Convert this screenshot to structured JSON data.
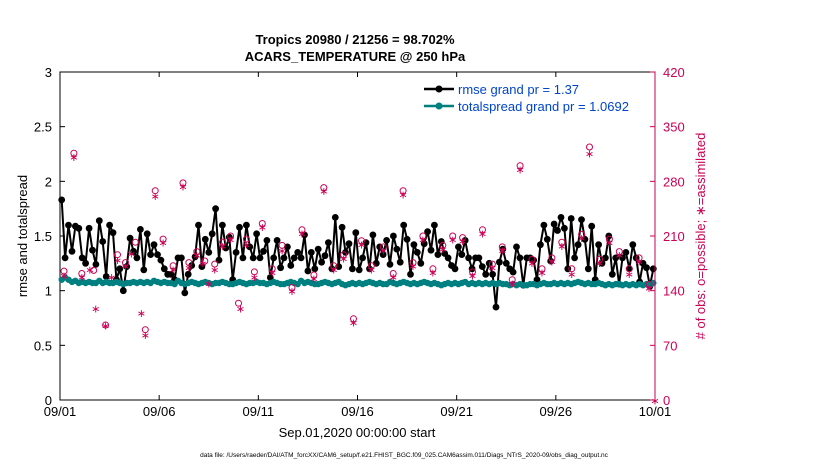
{
  "chart_data": {
    "type": "line",
    "title_line1": "Tropics 20980 / 21256 = 98.702%",
    "title_line2": "ACARS_TEMPERATURE @ 250 hPa",
    "xlabel": "Sep.01,2020 00:00:00 start",
    "ylabel": "rmse and totalspread",
    "y2label": "# of obs: o=possible; ∗=assimilated",
    "footer": "data file: /Users/raeder/DAI/ATM_forcXX/CAM6_setup/f.e21.FHIST_BGC.f09_025.CAM6assim.011/Diags_NTrS_2020-09/obs_diag_output.nc",
    "xlim": [
      0,
      30
    ],
    "ylim": [
      0,
      3
    ],
    "y2lim": [
      0,
      420
    ],
    "x_ticks": [
      0,
      5,
      10,
      15,
      20,
      25,
      30
    ],
    "x_tick_labels": [
      "09/01",
      "09/06",
      "09/11",
      "09/16",
      "09/21",
      "09/26",
      "10/01"
    ],
    "y_ticks": [
      0,
      0.5,
      1,
      1.5,
      2,
      2.5,
      3
    ],
    "y_tick_labels": [
      "0",
      "0.5",
      "1",
      "1.5",
      "2",
      "2.5",
      "3"
    ],
    "y2_ticks": [
      0,
      70,
      140,
      210,
      280,
      350,
      420
    ],
    "y2_tick_labels": [
      "0",
      "70",
      "140",
      "210",
      "280",
      "350",
      "420"
    ],
    "legend_position": "top-right",
    "colors": {
      "rmse": "#000000",
      "totalspread": "#008080",
      "obs": "#cc0055",
      "legend_text": "#0044cc",
      "axis": "#000000"
    },
    "series": [
      {
        "name": "rmse grand pr = 1.37",
        "values": [
          1.83,
          1.3,
          1.6,
          1.36,
          1.59,
          1.57,
          1.3,
          1.25,
          1.57,
          1.37,
          1.24,
          1.64,
          1.45,
          1.13,
          1.6,
          1.53,
          1.1,
          1.2,
          1.0,
          1.22,
          1.48,
          1.36,
          1.3,
          1.56,
          1.19,
          1.52,
          1.33,
          1.42,
          1.33,
          1.28,
          1.2,
          1.15,
          1.15,
          1.1,
          1.3,
          1.3,
          0.98,
          1.15,
          1.23,
          1.31,
          1.6,
          1.22,
          1.47,
          1.35,
          1.52,
          1.75,
          1.28,
          1.6,
          1.39,
          1.49,
          1.1,
          1.35,
          1.58,
          1.3,
          1.6,
          1.4,
          1.3,
          1.52,
          1.3,
          1.36,
          1.46,
          1.12,
          1.3,
          1.46,
          1.21,
          1.3,
          1.4,
          1.23,
          1.3,
          1.35,
          1.3,
          1.51,
          1.18,
          1.35,
          1.2,
          1.38,
          1.26,
          1.32,
          1.44,
          1.2,
          1.67,
          1.22,
          1.58,
          1.35,
          1.43,
          1.2,
          1.53,
          1.19,
          1.3,
          1.44,
          1.2,
          1.51,
          1.25,
          1.4,
          1.33,
          1.46,
          1.24,
          1.5,
          1.38,
          1.26,
          1.6,
          1.47,
          1.15,
          1.42,
          1.35,
          1.25,
          1.43,
          1.54,
          1.37,
          1.6,
          1.33,
          1.45,
          1.34,
          1.3,
          1.23,
          1.2,
          1.4,
          1.33,
          1.46,
          1.3,
          1.2,
          1.3,
          1.3,
          1.22,
          1.15,
          1.25,
          1.15,
          0.85,
          1.26,
          1.38,
          1.25,
          1.2,
          1.17,
          1.4,
          1.3,
          1.05,
          1.3,
          1.3,
          1.28,
          1.1,
          1.42,
          1.6,
          1.47,
          1.27,
          1.61,
          1.55,
          1.67,
          1.57,
          1.2,
          1.66,
          1.3,
          1.42,
          1.65,
          1.47,
          1.2,
          1.59,
          1.1,
          1.42,
          1.25,
          1.3,
          1.5,
          1.15,
          1.3,
          1.06,
          1.3,
          1.35,
          1.2,
          1.42,
          1.3,
          1.08,
          1.25,
          1.21,
          1.04,
          1.2
        ]
      },
      {
        "name": "totalspread grand pr = 1.0692",
        "values": [
          1.1,
          1.12,
          1.1,
          1.08,
          1.09,
          1.07,
          1.08,
          1.07,
          1.08,
          1.07,
          1.07,
          1.09,
          1.07,
          1.08,
          1.07,
          1.07,
          1.08,
          1.07,
          1.06,
          1.07,
          1.07,
          1.08,
          1.07,
          1.08,
          1.07,
          1.08,
          1.07,
          1.09,
          1.08,
          1.07,
          1.08,
          1.07,
          1.07,
          1.06,
          1.09,
          1.07,
          1.06,
          1.07,
          1.08,
          1.07,
          1.06,
          1.07,
          1.08,
          1.07,
          1.06,
          1.07,
          1.07,
          1.08,
          1.07,
          1.06,
          1.06,
          1.07,
          1.08,
          1.07,
          1.06,
          1.07,
          1.07,
          1.08,
          1.07,
          1.07,
          1.06,
          1.07,
          1.08,
          1.07,
          1.06,
          1.06,
          1.07,
          1.08,
          1.07,
          1.06,
          1.09,
          1.07,
          1.08,
          1.07,
          1.06,
          1.06,
          1.07,
          1.08,
          1.07,
          1.06,
          1.07,
          1.08,
          1.06,
          1.05,
          1.06,
          1.07,
          1.06,
          1.07,
          1.06,
          1.07,
          1.08,
          1.07,
          1.06,
          1.07,
          1.06,
          1.06,
          1.08,
          1.07,
          1.06,
          1.07,
          1.08,
          1.07,
          1.06,
          1.07,
          1.06,
          1.07,
          1.08,
          1.07,
          1.06,
          1.07,
          1.06,
          1.05,
          1.06,
          1.07,
          1.06,
          1.07,
          1.06,
          1.07,
          1.08,
          1.06,
          1.07,
          1.06,
          1.07,
          1.06,
          1.07,
          1.06,
          1.07,
          1.06,
          1.07,
          1.06,
          1.06,
          1.05,
          1.06,
          1.05,
          1.06,
          1.05,
          1.05,
          1.06,
          1.06,
          1.05,
          1.06,
          1.07,
          1.06,
          1.06,
          1.07,
          1.06,
          1.07,
          1.06,
          1.07,
          1.06,
          1.07,
          1.08,
          1.07,
          1.06,
          1.07,
          1.06,
          1.06,
          1.07,
          1.06,
          1.05,
          1.06,
          1.05,
          1.06,
          1.06,
          1.05,
          1.06,
          1.05,
          1.06,
          1.05,
          1.06,
          1.05,
          1.06,
          1.05,
          1.07
        ]
      }
    ],
    "obs_possible": [
      [
        0.2,
        165
      ],
      [
        0.7,
        316
      ],
      [
        1.1,
        162
      ],
      [
        1.7,
        166
      ],
      [
        2.3,
        96
      ],
      [
        2.9,
        186
      ],
      [
        3.3,
        176
      ],
      [
        3.8,
        202
      ],
      [
        4.3,
        90
      ],
      [
        4.8,
        268
      ],
      [
        5.2,
        206
      ],
      [
        5.7,
        172
      ],
      [
        6.2,
        278
      ],
      [
        6.5,
        176
      ],
      [
        6.9,
        190
      ],
      [
        7.3,
        178
      ],
      [
        7.8,
        174
      ],
      [
        8.2,
        202
      ],
      [
        8.6,
        210
      ],
      [
        9.0,
        124
      ],
      [
        9.4,
        206
      ],
      [
        9.8,
        164
      ],
      [
        10.2,
        226
      ],
      [
        10.7,
        168
      ],
      [
        11.2,
        198
      ],
      [
        11.7,
        144
      ],
      [
        12.2,
        218
      ],
      [
        12.8,
        160
      ],
      [
        13.3,
        272
      ],
      [
        13.8,
        172
      ],
      [
        14.3,
        186
      ],
      [
        14.8,
        104
      ],
      [
        15.2,
        204
      ],
      [
        15.7,
        172
      ],
      [
        16.3,
        196
      ],
      [
        16.8,
        162
      ],
      [
        17.3,
        268
      ],
      [
        17.8,
        176
      ],
      [
        18.3,
        210
      ],
      [
        18.8,
        168
      ],
      [
        19.3,
        198
      ],
      [
        19.8,
        210
      ],
      [
        20.3,
        208
      ],
      [
        20.8,
        164
      ],
      [
        21.3,
        218
      ],
      [
        21.8,
        174
      ],
      [
        22.3,
        196
      ],
      [
        22.8,
        154
      ],
      [
        23.2,
        300
      ],
      [
        23.8,
        180
      ],
      [
        24.3,
        168
      ],
      [
        24.8,
        182
      ],
      [
        25.3,
        202
      ],
      [
        25.8,
        168
      ],
      [
        26.3,
        212
      ],
      [
        26.7,
        324
      ],
      [
        27.2,
        180
      ],
      [
        27.7,
        206
      ],
      [
        28.2,
        190
      ],
      [
        28.7,
        168
      ],
      [
        29.2,
        182
      ],
      [
        29.7,
        148
      ]
    ],
    "obs_assimilated": [
      [
        0.2,
        160
      ],
      [
        0.7,
        312
      ],
      [
        1.1,
        158
      ],
      [
        1.5,
        168
      ],
      [
        1.8,
        118
      ],
      [
        2.3,
        96
      ],
      [
        2.6,
        158
      ],
      [
        2.9,
        180
      ],
      [
        3.3,
        172
      ],
      [
        3.6,
        188
      ],
      [
        4.1,
        112
      ],
      [
        4.3,
        84
      ],
      [
        4.8,
        262
      ],
      [
        5.2,
        202
      ],
      [
        5.7,
        168
      ],
      [
        6.2,
        274
      ],
      [
        6.5,
        170
      ],
      [
        6.9,
        186
      ],
      [
        7.2,
        176
      ],
      [
        7.5,
        150
      ],
      [
        7.8,
        168
      ],
      [
        8.2,
        198
      ],
      [
        8.6,
        206
      ],
      [
        9.1,
        118
      ],
      [
        9.4,
        200
      ],
      [
        9.8,
        158
      ],
      [
        10.2,
        222
      ],
      [
        10.7,
        164
      ],
      [
        11.2,
        192
      ],
      [
        11.7,
        140
      ],
      [
        12.2,
        214
      ],
      [
        12.8,
        156
      ],
      [
        13.3,
        268
      ],
      [
        13.8,
        168
      ],
      [
        14.3,
        182
      ],
      [
        14.8,
        100
      ],
      [
        15.2,
        200
      ],
      [
        15.7,
        168
      ],
      [
        16.3,
        192
      ],
      [
        16.8,
        158
      ],
      [
        17.3,
        264
      ],
      [
        17.8,
        172
      ],
      [
        18.3,
        206
      ],
      [
        18.8,
        164
      ],
      [
        19.3,
        194
      ],
      [
        19.8,
        206
      ],
      [
        20.3,
        204
      ],
      [
        20.8,
        160
      ],
      [
        21.3,
        214
      ],
      [
        21.8,
        170
      ],
      [
        22.3,
        192
      ],
      [
        22.8,
        150
      ],
      [
        23.2,
        296
      ],
      [
        23.8,
        176
      ],
      [
        24.3,
        164
      ],
      [
        24.8,
        178
      ],
      [
        25.3,
        198
      ],
      [
        25.8,
        162
      ],
      [
        26.3,
        208
      ],
      [
        26.7,
        316
      ],
      [
        27.2,
        176
      ],
      [
        27.7,
        202
      ],
      [
        28.2,
        186
      ],
      [
        28.7,
        162
      ],
      [
        29.2,
        178
      ],
      [
        29.7,
        144
      ],
      [
        30.0,
        0
      ]
    ]
  }
}
